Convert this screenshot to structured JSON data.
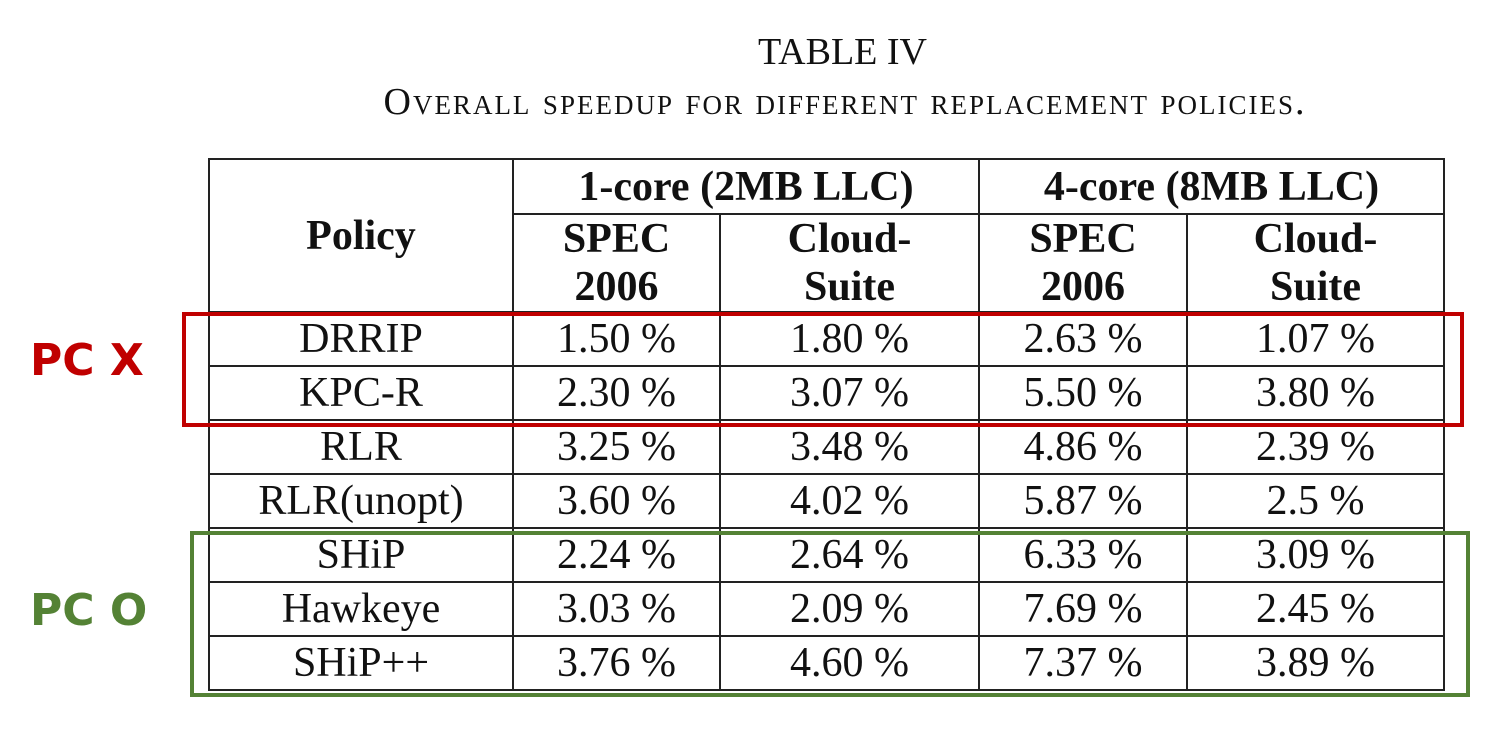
{
  "title": "TABLE IV",
  "subtitle": "Overall speedup for different replacement policies.",
  "table": {
    "policy_header": "Policy",
    "group_headers": [
      "1-core (2MB LLC)",
      "4-core (8MB LLC)"
    ],
    "sub_headers": [
      [
        "SPEC",
        "2006"
      ],
      [
        "Cloud-",
        "Suite"
      ],
      [
        "SPEC",
        "2006"
      ],
      [
        "Cloud-",
        "Suite"
      ]
    ],
    "rows": [
      [
        "DRRIP",
        "1.50 %",
        "1.80 %",
        "2.63 %",
        "1.07 %"
      ],
      [
        "KPC-R",
        "2.30 %",
        "3.07 %",
        "5.50 %",
        "3.80 %"
      ],
      [
        "RLR",
        "3.25 %",
        "3.48 %",
        "4.86 %",
        "2.39 %"
      ],
      [
        "RLR(unopt)",
        "3.60 %",
        "4.02 %",
        "5.87 %",
        "2.5 %"
      ],
      [
        "SHiP",
        "2.24 %",
        "2.64 %",
        "6.33 %",
        "3.09 %"
      ],
      [
        "Hawkeye",
        "3.03 %",
        "2.09 %",
        "7.69 %",
        "2.45 %"
      ],
      [
        "SHiP++",
        "3.76 %",
        "4.60 %",
        "7.37 %",
        "3.89 %"
      ]
    ]
  },
  "annotations": {
    "pc_x": {
      "label": "PC X",
      "color": "#c00000"
    },
    "pc_o": {
      "label": "PC O",
      "color": "#548235"
    }
  }
}
